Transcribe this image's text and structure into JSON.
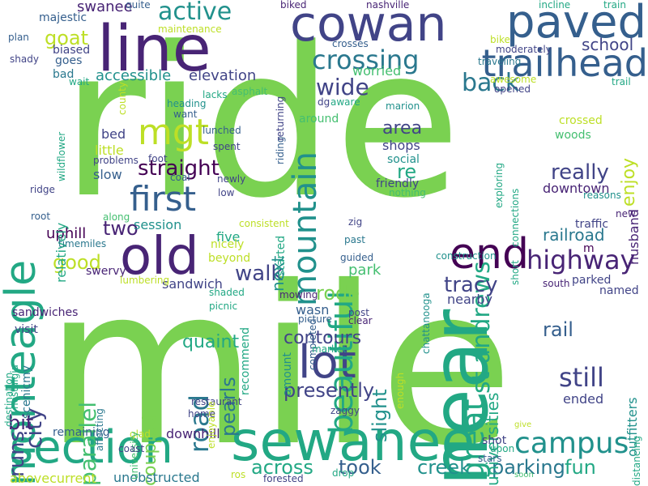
{
  "palette": {
    "c1": "#7ad151",
    "c2": "#440154",
    "c3": "#482475",
    "c4": "#414487",
    "c5": "#355f8d",
    "c6": "#2a788e",
    "c7": "#21918c",
    "c8": "#22a884",
    "c9": "#44bf70",
    "c10": "#bddf26",
    "c11": "#fde725"
  },
  "words": [
    "ride",
    "mile",
    "sewanee",
    "line",
    "section",
    "monteagle",
    "cowan",
    "paved",
    "old",
    "lot",
    "near",
    "end",
    "trailhead",
    "mountain",
    "beautiful",
    "first",
    "great",
    "campus",
    "highway",
    "crossing",
    "mgt",
    "still",
    "st andrews",
    "tracy",
    "road",
    "parallel",
    "active",
    "back",
    "goat",
    "wide",
    "school",
    "walk",
    "runs",
    "city",
    "took",
    "creek",
    "parking",
    "fun",
    "across",
    "bit",
    "good",
    "straight",
    "really",
    "enjoy",
    "universities",
    "railroad",
    "rail",
    "presently",
    "pearls",
    "contours",
    "slight",
    "coupled",
    "quaint",
    "sandwich",
    "park",
    "area",
    "shops",
    "accessible",
    "elevation",
    "downtown",
    "two",
    "five",
    "uphill",
    "session",
    "swanee",
    "majestic",
    "biased",
    "goes",
    "rode",
    "re",
    "wasn",
    "nearby",
    "ended",
    "husband",
    "outfitters",
    "traffic",
    "downhill",
    "unobstructed",
    "abovecurrent",
    "remaining",
    "zaggy",
    "shot",
    "upon",
    "stars",
    "give",
    "soon",
    "distancing",
    "woods",
    "crossed",
    "friendly",
    "social",
    "recommend",
    "amount",
    "started",
    "next",
    "relatively",
    "little",
    "bed",
    "slow",
    "sandwiches",
    "visit",
    "nostalgia",
    "scenicmy",
    "destination",
    "riding",
    "returning",
    "biked",
    "nashville",
    "train",
    "incline",
    "bike",
    "moderately",
    "traveling",
    "trail",
    "opened",
    "awesome",
    "worried",
    "around",
    "marion",
    "dg",
    "aware",
    "asphalt",
    "lacks",
    "heading",
    "want",
    "lunched",
    "spent",
    "low",
    "newly",
    "foot",
    "coal",
    "problems",
    "wildflower",
    "ridge",
    "root",
    "along",
    "timemiles",
    "nicely",
    "beyond",
    "swervy",
    "lumbering",
    "shaded",
    "picnic",
    "mowing",
    "picture",
    "clear",
    "post",
    "guided",
    "completed",
    "chattanooga",
    "construction",
    "parked",
    "named",
    "south",
    "m",
    "new",
    "zig",
    "past",
    "consistent",
    "nothing",
    "reasons",
    "connections",
    "exploring",
    "short",
    "crosses",
    "county",
    "maintenance",
    "plan",
    "shady",
    "bad",
    "quite",
    "wait",
    "market",
    "enough",
    "restaurant",
    "enjoyable",
    "glad",
    "home",
    "university",
    "affecting",
    "coast",
    "ros",
    "drop",
    "forested"
  ]
}
